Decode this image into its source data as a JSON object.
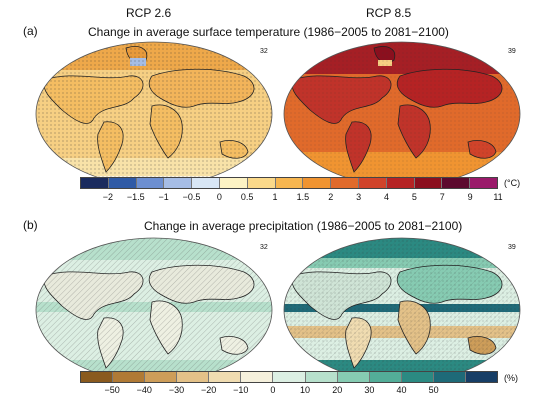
{
  "header": {
    "scenario_left": "RCP 2.6",
    "scenario_right": "RCP 8.5"
  },
  "temperature": {
    "label": "(a)",
    "title": "Change in average surface temperature (1986−2005 to 2081−2100)",
    "count_left": "32",
    "count_right": "39",
    "colorbar": {
      "colors": [
        "#1a2b5e",
        "#2f5aa6",
        "#6d8fd1",
        "#a6bde6",
        "#d8e6f5",
        "#fdf3c4",
        "#fbd98a",
        "#f7b650",
        "#f09431",
        "#e06a2b",
        "#d0432a",
        "#b52324",
        "#8b0f1e",
        "#5c0a2e",
        "#9a1a6a"
      ],
      "ticks": [
        "−2",
        "−1.5",
        "−1",
        "−0.5",
        "0",
        "0.5",
        "1",
        "1.5",
        "2",
        "3",
        "4",
        "5",
        "7",
        "9",
        "11"
      ],
      "unit": "(°C)"
    }
  },
  "precipitation": {
    "label": "(b)",
    "title": "Change in average precipitation (1986−2005 to 2081−2100)",
    "count_left": "32",
    "count_right": "39",
    "colorbar": {
      "colors": [
        "#8a5a1e",
        "#b07a35",
        "#cd9d59",
        "#e3c188",
        "#f0dcb1",
        "#f5f0dc",
        "#dcefe3",
        "#b7e0cc",
        "#86cbb2",
        "#53ad98",
        "#2b8a82",
        "#1e6a78",
        "#173e66"
      ],
      "ticks": [
        "−50",
        "−40",
        "−30",
        "−20",
        "−10",
        "0",
        "10",
        "20",
        "30",
        "40",
        "50"
      ],
      "unit": "(%)"
    }
  }
}
